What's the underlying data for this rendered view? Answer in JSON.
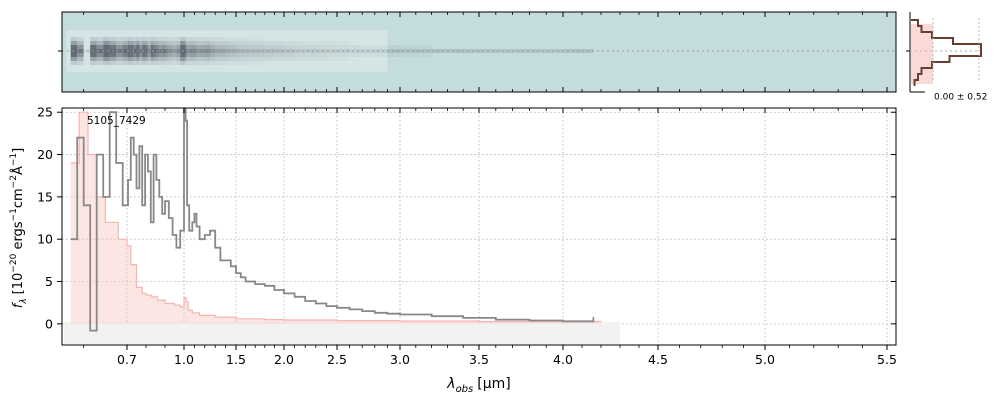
{
  "figure": {
    "object_label": "5105_7429",
    "histogram_label": "0.00 ± 0.52",
    "xlabel_main": "λ",
    "xlabel_sub": "obs",
    "xlabel_unit": "[μm]",
    "ylabel_main": "f",
    "ylabel_sub": "λ",
    "ylabel_unit": "[10",
    "ylabel_exp1": "−20",
    "ylabel_mid1": " ergs",
    "ylabel_exp2": "−1",
    "ylabel_mid2": "cm",
    "ylabel_exp3": "−2",
    "ylabel_mid3": "Å",
    "ylabel_exp4": "−1",
    "ylabel_end": "]"
  },
  "colors": {
    "spectrum": "#888888",
    "error": "#f4b5b0",
    "error_fill": "#f8c8c4",
    "hist": "#6b3f30",
    "twod_bg": "#c5dcdc",
    "grid": "#b0b0b0"
  },
  "chart_data": {
    "type": "line",
    "x_scale": "nonlinear (stretched at short wavelengths)",
    "xlim": [
      0.55,
      5.55
    ],
    "ylim": [
      -2.5,
      25.5
    ],
    "x_ticks": [
      0.7,
      1.0,
      1.5,
      2.0,
      2.5,
      3.0,
      3.5,
      4.0,
      4.5,
      5.0,
      5.5
    ],
    "x_tick_labels": [
      "0.7",
      "1.0",
      "1.5",
      "2.0",
      "2.5",
      "3.0",
      "3.5",
      "4.0",
      "4.5",
      "5.0",
      "5.5"
    ],
    "y_ticks": [
      0,
      5,
      10,
      15,
      20,
      25
    ],
    "y_tick_labels": [
      "0",
      "5",
      "10",
      "15",
      "20",
      "25"
    ],
    "grid": true,
    "series": [
      {
        "role": "flux",
        "points": [
          [
            0.57,
            10
          ],
          [
            0.585,
            22
          ],
          [
            0.6,
            14
          ],
          [
            0.615,
            -0.8
          ],
          [
            0.63,
            20
          ],
          [
            0.645,
            15
          ],
          [
            0.66,
            25
          ],
          [
            0.675,
            19
          ],
          [
            0.69,
            14
          ],
          [
            0.705,
            17
          ],
          [
            0.72,
            22
          ],
          [
            0.735,
            20
          ],
          [
            0.75,
            16
          ],
          [
            0.765,
            21
          ],
          [
            0.78,
            14
          ],
          [
            0.795,
            20
          ],
          [
            0.81,
            18
          ],
          [
            0.825,
            12
          ],
          [
            0.84,
            20
          ],
          [
            0.855,
            17
          ],
          [
            0.87,
            15
          ],
          [
            0.885,
            13
          ],
          [
            0.9,
            14.5
          ],
          [
            0.92,
            12.5
          ],
          [
            0.94,
            10.5
          ],
          [
            0.96,
            9
          ],
          [
            0.98,
            11
          ],
          [
            1.0,
            25.5
          ],
          [
            1.015,
            24
          ],
          [
            1.03,
            14
          ],
          [
            1.05,
            11
          ],
          [
            1.08,
            12
          ],
          [
            1.1,
            13
          ],
          [
            1.12,
            11.5
          ],
          [
            1.15,
            10
          ],
          [
            1.2,
            10.5
          ],
          [
            1.25,
            11
          ],
          [
            1.3,
            9
          ],
          [
            1.35,
            7.5
          ],
          [
            1.4,
            7.5
          ],
          [
            1.45,
            6.8
          ],
          [
            1.5,
            6
          ],
          [
            1.55,
            5.5
          ],
          [
            1.6,
            5
          ],
          [
            1.7,
            4.7
          ],
          [
            1.8,
            4.5
          ],
          [
            1.9,
            4
          ],
          [
            2.0,
            3.6
          ],
          [
            2.1,
            3.2
          ],
          [
            2.2,
            2.7
          ],
          [
            2.3,
            2.4
          ],
          [
            2.4,
            2.1
          ],
          [
            2.5,
            1.9
          ],
          [
            2.6,
            1.7
          ],
          [
            2.7,
            1.5
          ],
          [
            2.8,
            1.3
          ],
          [
            2.9,
            1.2
          ],
          [
            3.0,
            1.1
          ],
          [
            3.2,
            0.9
          ],
          [
            3.4,
            0.7
          ],
          [
            3.6,
            0.5
          ],
          [
            3.8,
            0.4
          ],
          [
            4.0,
            0.3
          ],
          [
            4.16,
            0.8
          ]
        ]
      },
      {
        "role": "error",
        "points": [
          [
            0.57,
            19
          ],
          [
            0.59,
            25
          ],
          [
            0.61,
            20
          ],
          [
            0.63,
            15
          ],
          [
            0.65,
            12
          ],
          [
            0.68,
            10
          ],
          [
            0.7,
            9.2
          ],
          [
            0.72,
            7
          ],
          [
            0.75,
            4.3
          ],
          [
            0.78,
            3.6
          ],
          [
            0.8,
            3.4
          ],
          [
            0.83,
            3.2
          ],
          [
            0.86,
            2.8
          ],
          [
            0.9,
            2.4
          ],
          [
            0.95,
            2.2
          ],
          [
            0.98,
            2.0
          ],
          [
            1.0,
            3.1
          ],
          [
            1.02,
            2.6
          ],
          [
            1.04,
            1.6
          ],
          [
            1.08,
            1.3
          ],
          [
            1.15,
            1.0
          ],
          [
            1.3,
            0.8
          ],
          [
            1.5,
            0.6
          ],
          [
            1.8,
            0.5
          ],
          [
            2.0,
            0.45
          ],
          [
            2.5,
            0.38
          ],
          [
            3.0,
            0.32
          ],
          [
            3.5,
            0.28
          ],
          [
            4.0,
            0.28
          ],
          [
            4.2,
            0.27
          ]
        ]
      }
    ]
  }
}
